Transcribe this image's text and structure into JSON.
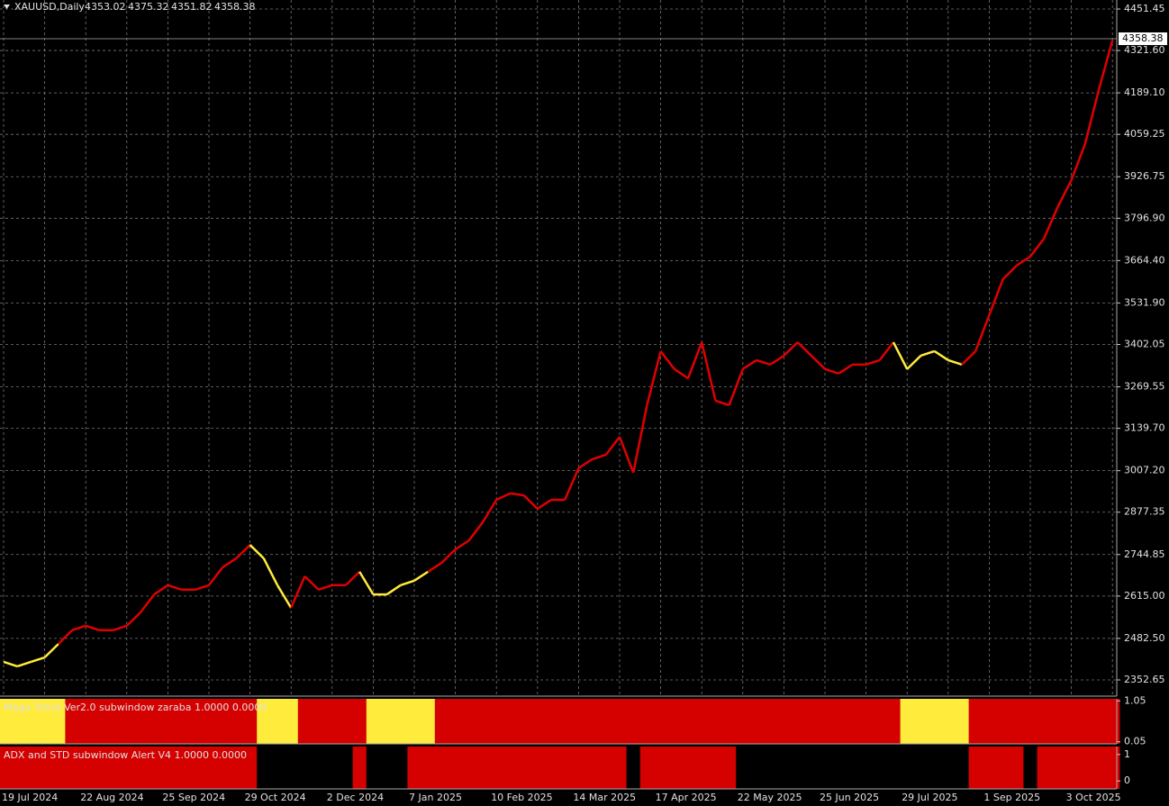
{
  "chart_data": [
    {
      "type": "line",
      "title": "XAUUSD,Daily",
      "ohlc": [
        4353.02,
        4375.32,
        4351.82,
        4358.38
      ],
      "last_price": 4358.38,
      "categories": [
        "19 Jul 2024",
        null,
        null,
        null,
        null,
        null,
        "22 Aug 2024",
        null,
        null,
        null,
        null,
        null,
        "25 Sep 2024",
        null,
        null,
        null,
        null,
        null,
        "29 Oct 2024",
        null,
        null,
        null,
        null,
        null,
        "2 Dec 2024",
        null,
        null,
        null,
        null,
        null,
        "7 Jan 2025",
        null,
        null,
        null,
        null,
        null,
        "10 Feb 2025",
        null,
        null,
        null,
        null,
        null,
        "14 Mar 2025",
        null,
        null,
        null,
        null,
        null,
        "17 Apr 2025",
        null,
        null,
        null,
        null,
        null,
        "22 May 2025",
        null,
        null,
        null,
        null,
        null,
        "25 Jun 2025",
        null,
        null,
        null,
        null,
        null,
        "29 Jul 2025",
        null,
        null,
        null,
        null,
        null,
        "1 Sep 2025",
        null,
        null,
        null,
        null,
        null,
        "3 Oct 2025",
        null,
        null,
        null
      ],
      "values": [
        2409,
        2395,
        2409,
        2423,
        2465,
        2508,
        2522,
        2508,
        2508,
        2522,
        2564,
        2620,
        2649,
        2635,
        2635,
        2649,
        2705,
        2733,
        2775,
        2733,
        2649,
        2578,
        2677,
        2635,
        2649,
        2649,
        2691,
        2620,
        2620,
        2649,
        2663,
        2691,
        2719,
        2761,
        2789,
        2846,
        2916,
        2936,
        2930,
        2888,
        2916,
        2916,
        3015,
        3043,
        3057,
        3113,
        3001,
        3212,
        3381,
        3325,
        3296,
        3409,
        3226,
        3212,
        3325,
        3353,
        3339,
        3367,
        3409,
        3367,
        3325,
        3311,
        3339,
        3339,
        3353,
        3409,
        3325,
        3367,
        3381,
        3353,
        3339,
        3381,
        3494,
        3606,
        3649,
        3677,
        3733,
        3832,
        3916,
        4029,
        4198,
        4353
      ],
      "color": "#e00000",
      "ylim": [
        2301.9,
        4479.6
      ],
      "yticks": [
        4451.45,
        {
          "value": 4321.6,
          "label": "4321.60"
        },
        {
          "value": 4189.1,
          "label": "4189.10"
        },
        4059.25,
        3926.75,
        {
          "value": 3796.9,
          "label": "3796.90"
        },
        {
          "value": 3664.4,
          "label": "3664.40"
        },
        {
          "value": 3531.9,
          "label": "3531.90"
        },
        3402.05,
        3269.55,
        {
          "value": 3139.7,
          "label": "3139.70"
        },
        {
          "value": 3007.2,
          "label": "3007.20"
        },
        2877.35,
        2744.85,
        {
          "value": 2615,
          "label": "2615.00"
        },
        {
          "value": 2482.5,
          "label": "2482.50"
        },
        2352.65
      ],
      "grid": true
    },
    {
      "type": "state",
      "title": "Mega Trend Ver2.0 subwindow zaraba 1.0000 0.0000",
      "values": [
        0,
        0,
        0,
        0,
        0,
        1,
        1,
        1,
        1,
        1,
        1,
        1,
        1,
        1,
        1,
        1,
        1,
        1,
        1,
        0,
        0,
        0,
        1,
        1,
        1,
        1,
        1,
        0,
        0,
        0,
        0,
        0,
        1,
        1,
        1,
        1,
        1,
        1,
        1,
        1,
        1,
        1,
        1,
        1,
        1,
        1,
        1,
        1,
        1,
        1,
        1,
        1,
        1,
        1,
        1,
        1,
        1,
        1,
        1,
        1,
        1,
        1,
        1,
        1,
        1,
        1,
        0,
        0,
        0,
        0,
        0,
        1,
        1,
        1,
        1,
        1,
        1,
        1,
        1,
        1,
        1,
        1
      ],
      "state_colors": {
        "0": "#ffeb3b",
        "1": "#d50000"
      },
      "ylim": [
        0,
        1.1
      ],
      "yticks": [
        1.05,
        0.05
      ]
    },
    {
      "type": "state",
      "title": "ADX and STD subwindow Alert V4 1.0000 0.0000",
      "values": [
        1,
        1,
        1,
        1,
        1,
        1,
        1,
        1,
        1,
        1,
        1,
        1,
        1,
        1,
        1,
        1,
        1,
        1,
        1,
        0,
        0,
        0,
        0,
        0,
        0,
        0,
        1,
        0,
        0,
        0,
        1,
        1,
        1,
        1,
        1,
        1,
        1,
        1,
        1,
        1,
        1,
        1,
        1,
        1,
        1,
        1,
        0,
        1,
        1,
        1,
        1,
        1,
        1,
        1,
        0,
        0,
        0,
        0,
        0,
        0,
        0,
        0,
        0,
        0,
        0,
        0,
        0,
        0,
        0,
        0,
        0,
        1,
        1,
        1,
        1,
        0,
        1,
        1,
        1,
        1,
        1,
        1
      ],
      "state_colors": {
        "0": "#000000",
        "1": "#d50000"
      },
      "ylim": [
        -0.3,
        1.3
      ],
      "yticks": [
        1,
        0
      ]
    }
  ]
}
